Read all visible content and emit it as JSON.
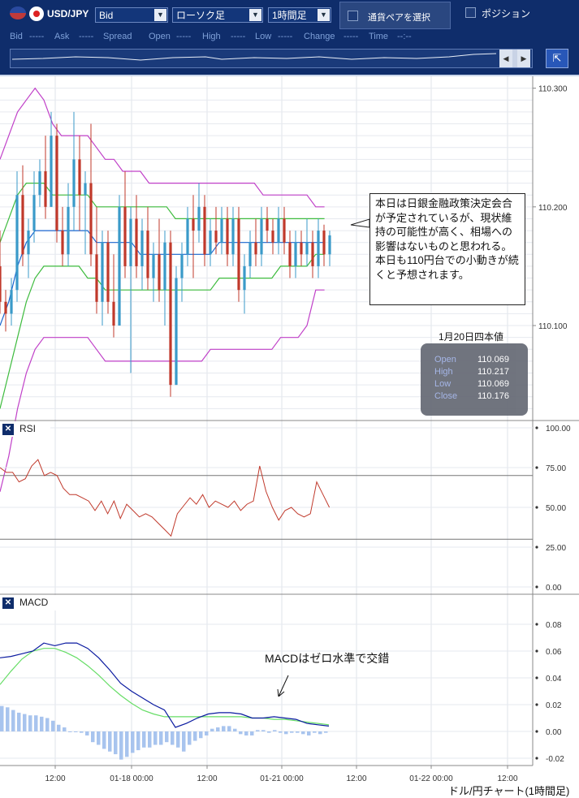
{
  "toolbar": {
    "pair": "USD/JPY",
    "price_type": "Bid",
    "chart_type": "ローソク足",
    "timeframe": "1時間足",
    "select_pair": "通貨ペアを選択",
    "position": "ポジション",
    "quote_labels": {
      "bid": "Bid",
      "bid_val": "-----",
      "ask": "Ask",
      "ask_val": "-----",
      "spread": "Spread",
      "spread_val": "-----",
      "open": "Open",
      "open_val": "-----",
      "high": "High",
      "high_val": "-----",
      "low": "Low",
      "low_val": "-----",
      "change": "Change",
      "change_val": "-----",
      "time": "Time",
      "time_val": "--:--"
    }
  },
  "callout": "本日は日銀金融政策決定会合が予定されているが、現状維持の可能性が高く、相場への影響はないものと思われる。本日も110円台での小動きが続くと予想されます。",
  "ohlc": {
    "title": "1月20日四本値",
    "rows": [
      {
        "label": "Open",
        "value": "110.069"
      },
      {
        "label": "High",
        "value": "110.217"
      },
      {
        "label": "Low",
        "value": "110.069"
      },
      {
        "label": "Close",
        "value": "110.176"
      }
    ]
  },
  "panels": {
    "rsi": "RSI",
    "macd": "MACD"
  },
  "macd_note": "MACDはゼロ水準で交錯",
  "footer": "ドル/円チャート(1時間足)",
  "colors": {
    "up": "#3a9ac9",
    "down": "#c0392b",
    "bb_outer": "#c040c8",
    "bb_inner": "#3dbb3d",
    "sma": "#1a66d0",
    "rsi": "#c0392b",
    "macd": "#0a1aa0",
    "signal": "#66dd66",
    "hist": "#a8c4ee"
  },
  "chart_data": [
    {
      "type": "candlestick",
      "ylim": [
        110.02,
        110.31
      ],
      "y_ticks": [
        "110.300",
        "110.200",
        "110.100"
      ],
      "x_ticks": [
        "12:00",
        "01-18 00:00",
        "12:00",
        "01-21 00:00",
        "12:00",
        "01-22 00:00",
        "12:00"
      ],
      "candles": [
        [
          110.15,
          110.18,
          110.11,
          110.12
        ],
        [
          110.12,
          110.13,
          110.095,
          110.11
        ],
        [
          110.11,
          110.14,
          110.1,
          110.13
        ],
        [
          110.13,
          110.23,
          110.12,
          110.21
        ],
        [
          110.21,
          110.235,
          110.15,
          110.16
        ],
        [
          110.16,
          110.19,
          110.14,
          110.18
        ],
        [
          110.18,
          110.23,
          110.17,
          110.21
        ],
        [
          110.21,
          110.24,
          110.2,
          110.23
        ],
        [
          110.23,
          110.26,
          110.19,
          110.2
        ],
        [
          110.2,
          110.28,
          110.2,
          110.26
        ],
        [
          110.26,
          110.27,
          110.17,
          110.18
        ],
        [
          110.18,
          110.2,
          110.15,
          110.16
        ],
        [
          110.16,
          110.22,
          110.15,
          110.2
        ],
        [
          110.2,
          110.28,
          110.18,
          110.24
        ],
        [
          110.24,
          110.26,
          110.18,
          110.21
        ],
        [
          110.21,
          110.23,
          110.16,
          110.22
        ],
        [
          110.22,
          110.27,
          110.15,
          110.16
        ],
        [
          110.16,
          110.2,
          110.11,
          110.12
        ],
        [
          110.12,
          110.18,
          110.1,
          110.17
        ],
        [
          110.17,
          110.18,
          110.11,
          110.12
        ],
        [
          110.12,
          110.16,
          110.09,
          110.1
        ],
        [
          110.1,
          110.21,
          110.1,
          110.2
        ],
        [
          110.2,
          110.23,
          110.14,
          110.15
        ],
        [
          110.15,
          110.2,
          110.06,
          110.19
        ],
        [
          110.19,
          110.21,
          110.14,
          110.15
        ],
        [
          110.15,
          110.19,
          110.13,
          110.18
        ],
        [
          110.18,
          110.2,
          110.13,
          110.14
        ],
        [
          110.14,
          110.17,
          110.12,
          110.16
        ],
        [
          110.16,
          110.19,
          110.12,
          110.13
        ],
        [
          110.13,
          110.18,
          110.1,
          110.17
        ],
        [
          110.17,
          110.18,
          110.04,
          110.05
        ],
        [
          110.05,
          110.15,
          110.05,
          110.14
        ],
        [
          110.14,
          110.17,
          110.12,
          110.16
        ],
        [
          110.16,
          110.2,
          110.15,
          110.19
        ],
        [
          110.19,
          110.21,
          110.14,
          110.18
        ],
        [
          110.18,
          110.22,
          110.17,
          110.2
        ],
        [
          110.2,
          110.21,
          110.15,
          110.16
        ],
        [
          110.16,
          110.19,
          110.15,
          110.18
        ],
        [
          110.18,
          110.2,
          110.16,
          110.17
        ],
        [
          110.17,
          110.2,
          110.16,
          110.19
        ],
        [
          110.19,
          110.2,
          110.15,
          110.16
        ],
        [
          110.16,
          110.2,
          110.15,
          110.19
        ],
        [
          110.19,
          110.2,
          110.12,
          110.13
        ],
        [
          110.13,
          110.16,
          110.11,
          110.15
        ],
        [
          110.15,
          110.18,
          110.14,
          110.17
        ],
        [
          110.17,
          110.19,
          110.15,
          110.16
        ],
        [
          110.16,
          110.2,
          110.15,
          110.19
        ],
        [
          110.19,
          110.2,
          110.17,
          110.18
        ],
        [
          110.18,
          110.19,
          110.16,
          110.17
        ],
        [
          110.17,
          110.2,
          110.16,
          110.19
        ],
        [
          110.19,
          110.2,
          110.16,
          110.17
        ],
        [
          110.17,
          110.18,
          110.14,
          110.15
        ],
        [
          110.15,
          110.18,
          110.14,
          110.17
        ],
        [
          110.17,
          110.18,
          110.15,
          110.16
        ],
        [
          110.16,
          110.19,
          110.15,
          110.17
        ],
        [
          110.17,
          110.18,
          110.14,
          110.15
        ],
        [
          110.15,
          110.19,
          110.14,
          110.18
        ],
        [
          110.18,
          110.185,
          110.15,
          110.16
        ],
        [
          110.16,
          110.18,
          110.15,
          110.176
        ]
      ],
      "bb_upper2": [
        110.24,
        110.26,
        110.28,
        110.29,
        110.3,
        110.29,
        110.27,
        110.26,
        110.26,
        110.26,
        110.26,
        110.25,
        110.24,
        110.24,
        110.23,
        110.23,
        110.23,
        110.22,
        110.22,
        110.22,
        110.22,
        110.22,
        110.22,
        110.22,
        110.22,
        110.22,
        110.22,
        110.22,
        110.22,
        110.22,
        110.21,
        110.21,
        110.21,
        110.21,
        110.21,
        110.21,
        110.2,
        110.2
      ],
      "bb_upper1": [
        110.17,
        110.19,
        110.21,
        110.22,
        110.22,
        110.22,
        110.21,
        110.21,
        110.21,
        110.21,
        110.21,
        110.2,
        110.2,
        110.2,
        110.2,
        110.2,
        110.2,
        110.2,
        110.2,
        110.2,
        110.19,
        110.19,
        110.19,
        110.19,
        110.19,
        110.19,
        110.19,
        110.19,
        110.19,
        110.19,
        110.19,
        110.19,
        110.19,
        110.19,
        110.19,
        110.19,
        110.19,
        110.19
      ],
      "sma": [
        110.1,
        110.12,
        110.15,
        110.17,
        110.18,
        110.18,
        110.18,
        110.18,
        110.18,
        110.18,
        110.18,
        110.17,
        110.17,
        110.17,
        110.17,
        110.17,
        110.16,
        110.16,
        110.16,
        110.16,
        110.16,
        110.16,
        110.16,
        110.16,
        110.16,
        110.17,
        110.17,
        110.17,
        110.17,
        110.17,
        110.17,
        110.17,
        110.17,
        110.17,
        110.17,
        110.17,
        110.17,
        110.17
      ],
      "bb_lower1": [
        110.03,
        110.06,
        110.09,
        110.12,
        110.14,
        110.15,
        110.15,
        110.15,
        110.15,
        110.15,
        110.14,
        110.14,
        110.13,
        110.13,
        110.13,
        110.13,
        110.13,
        110.13,
        110.13,
        110.13,
        110.13,
        110.13,
        110.13,
        110.13,
        110.13,
        110.14,
        110.14,
        110.14,
        110.14,
        110.14,
        110.14,
        110.14,
        110.15,
        110.15,
        110.15,
        110.15,
        110.16,
        110.16
      ],
      "bb_lower2": [
        109.96,
        109.99,
        110.03,
        110.06,
        110.08,
        110.09,
        110.09,
        110.09,
        110.09,
        110.09,
        110.09,
        110.08,
        110.07,
        110.07,
        110.07,
        110.07,
        110.07,
        110.07,
        110.07,
        110.07,
        110.07,
        110.07,
        110.07,
        110.07,
        110.08,
        110.08,
        110.08,
        110.08,
        110.08,
        110.08,
        110.08,
        110.08,
        110.09,
        110.09,
        110.09,
        110.1,
        110.13,
        110.13
      ]
    },
    {
      "type": "line",
      "name": "RSI",
      "ylim": [
        0,
        100
      ],
      "y_ticks": [
        "100.00",
        "75.00",
        "50.00",
        "25.00",
        "0.00"
      ],
      "levels": [
        70,
        30
      ],
      "values": [
        75,
        72,
        72,
        66,
        68,
        76,
        80,
        70,
        72,
        70,
        62,
        58,
        58,
        56,
        54,
        48,
        54,
        46,
        54,
        43,
        52,
        48,
        44,
        46,
        44,
        40,
        36,
        32,
        46,
        51,
        56,
        52,
        58,
        50,
        54,
        52,
        50,
        54,
        48,
        52,
        54,
        76,
        60,
        50,
        42,
        48,
        50,
        46,
        44,
        46,
        66,
        58,
        50
      ]
    },
    {
      "type": "bar+line",
      "name": "MACD",
      "ylim": [
        -0.025,
        0.1
      ],
      "y_ticks": [
        "0.08",
        "0.06",
        "0.04",
        "0.02",
        "0.00",
        "-0.02"
      ],
      "macd": [
        0.055,
        0.056,
        0.058,
        0.06,
        0.066,
        0.064,
        0.066,
        0.066,
        0.062,
        0.055,
        0.046,
        0.036,
        0.03,
        0.025,
        0.02,
        0.016,
        0.003,
        0.006,
        0.01,
        0.013,
        0.014,
        0.014,
        0.013,
        0.01,
        0.01,
        0.011,
        0.01,
        0.009,
        0.006,
        0.005,
        0.004
      ],
      "signal": [
        0.035,
        0.045,
        0.054,
        0.06,
        0.062,
        0.062,
        0.059,
        0.055,
        0.049,
        0.042,
        0.034,
        0.027,
        0.021,
        0.016,
        0.013,
        0.011,
        0.011,
        0.011,
        0.011,
        0.011,
        0.011,
        0.011,
        0.011,
        0.01,
        0.01,
        0.009,
        0.009,
        0.008,
        0.007,
        0.006,
        0.005
      ],
      "histogram": [
        0.019,
        0.018,
        0.016,
        0.014,
        0.013,
        0.012,
        0.012,
        0.011,
        0.01,
        0.008,
        0.005,
        0.003,
        0,
        0,
        -0.001,
        -0.003,
        -0.008,
        -0.01,
        -0.013,
        -0.015,
        -0.017,
        -0.021,
        -0.019,
        -0.016,
        -0.014,
        -0.012,
        -0.012,
        -0.01,
        -0.01,
        -0.008,
        -0.01,
        -0.012,
        -0.015,
        -0.01,
        -0.007,
        -0.005,
        -0.003,
        0.002,
        0.003,
        0.004,
        0.004,
        0.002,
        -0.002,
        -0.003,
        -0.003,
        0.001,
        0.001,
        -0.001,
        0.001,
        -0.001,
        -0.002,
        -0.001,
        -0.001,
        -0.002,
        -0.003,
        -0.001,
        -0.002,
        -0.001
      ]
    }
  ]
}
